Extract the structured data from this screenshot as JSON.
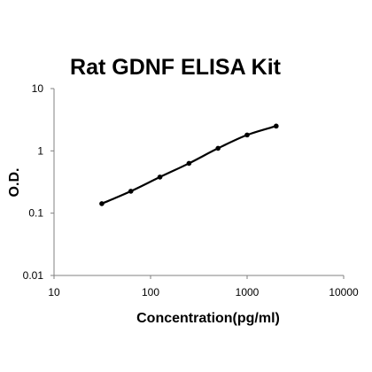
{
  "chart_data": {
    "type": "scatter",
    "title": "Rat GDNF ELISA Kit",
    "xlabel": "Concentration(pg/ml)",
    "ylabel": "O.D.",
    "x_scale": "log",
    "y_scale": "log",
    "xlim": [
      10,
      10000
    ],
    "ylim": [
      0.01,
      10
    ],
    "x_ticks": [
      "10",
      "100",
      "1000",
      "10000"
    ],
    "y_ticks": [
      "0.01",
      "0.1",
      "1",
      "10"
    ],
    "grid": false,
    "legend": "none",
    "series": [
      {
        "x": [
          31.25,
          62.5,
          125,
          250,
          500,
          1000,
          2000
        ],
        "y": [
          0.142,
          0.225,
          0.38,
          0.63,
          1.1,
          1.8,
          2.5
        ]
      }
    ],
    "colors": {
      "line": "#000000",
      "marker": "#000000",
      "axis": "#808080"
    }
  }
}
